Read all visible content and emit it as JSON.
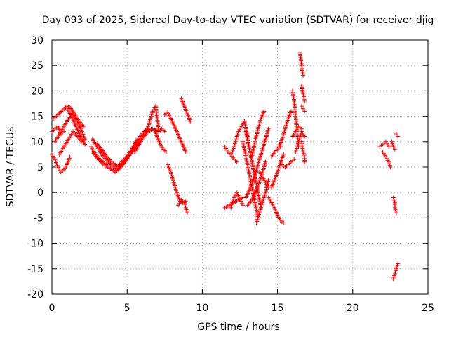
{
  "chart_data": {
    "type": "scatter",
    "title": "Day 093 of 2025, Sidereal Day-to-day VTEC variation (SDTVAR) for receiver djig",
    "xlabel": "GPS time / hours",
    "ylabel": "SDTVAR / TECUs",
    "xlim": [
      0,
      25
    ],
    "ylim": [
      -20,
      30
    ],
    "x_ticks": [
      "0",
      "5",
      "10",
      "15",
      "20",
      "25"
    ],
    "y_ticks": [
      "-20",
      "-15",
      "-10",
      "-5",
      "0",
      "5",
      "10",
      "15",
      "20",
      "25",
      "30"
    ],
    "grid": true,
    "legend": "none",
    "marker": "plus",
    "series_color": "#ff0000",
    "segments": [
      {
        "x": [
          0.0,
          0.2,
          0.4,
          0.6,
          0.8
        ],
        "y": [
          12.0,
          12.5,
          13.0,
          11.5,
          12.0
        ]
      },
      {
        "x": [
          0.0,
          0.2,
          0.4,
          0.6,
          0.8,
          1.0,
          1.2
        ],
        "y": [
          7.5,
          6.5,
          5.0,
          4.0,
          4.5,
          5.5,
          7.0
        ]
      },
      {
        "x": [
          0.1,
          0.4,
          0.7,
          1.0,
          1.2,
          1.5,
          1.8,
          2.1
        ],
        "y": [
          14.5,
          15.3,
          16.2,
          17.0,
          16.8,
          15.5,
          14.0,
          13.0
        ]
      },
      {
        "x": [
          0.2,
          0.5,
          0.8,
          1.1,
          1.4,
          1.7,
          2.0,
          2.2
        ],
        "y": [
          10.0,
          11.5,
          13.0,
          14.5,
          15.5,
          14.0,
          12.0,
          10.5
        ]
      },
      {
        "x": [
          0.5,
          0.8,
          1.1,
          1.4,
          1.7,
          2.0,
          2.2
        ],
        "y": [
          7.5,
          9.0,
          10.5,
          12.0,
          11.0,
          10.0,
          9.5
        ]
      },
      {
        "x": [
          1.0,
          1.3,
          1.6,
          1.9,
          2.2
        ],
        "y": [
          16.5,
          15.0,
          13.0,
          11.0,
          9.5
        ]
      },
      {
        "x": [
          2.7,
          3.0,
          3.3,
          3.6,
          3.9,
          4.2,
          4.5,
          4.8,
          5.1,
          5.4,
          5.6
        ],
        "y": [
          10.5,
          9.0,
          7.5,
          6.5,
          5.5,
          4.8,
          5.5,
          6.5,
          7.5,
          9.0,
          10.0
        ]
      },
      {
        "x": [
          2.6,
          2.9,
          3.2,
          3.5,
          3.8,
          4.1,
          4.4,
          4.7,
          5.0,
          5.3,
          5.6,
          5.9
        ],
        "y": [
          9.0,
          7.5,
          6.5,
          5.8,
          5.0,
          4.3,
          4.5,
          5.5,
          6.8,
          8.0,
          9.0,
          10.0
        ]
      },
      {
        "x": [
          2.7,
          3.0,
          3.3,
          3.6,
          3.9,
          4.2,
          4.5,
          4.8,
          5.1,
          5.4,
          5.7,
          6.0,
          6.3
        ],
        "y": [
          8.0,
          6.8,
          5.9,
          5.2,
          4.6,
          4.0,
          4.8,
          6.0,
          7.5,
          9.0,
          10.5,
          11.5,
          12.5
        ]
      },
      {
        "x": [
          3.0,
          3.3,
          3.6,
          3.9,
          4.2,
          4.5,
          4.8,
          5.1,
          5.4,
          5.7,
          6.0,
          6.3,
          6.6
        ],
        "y": [
          9.5,
          8.5,
          7.2,
          6.2,
          5.5,
          5.0,
          5.8,
          7.0,
          8.5,
          9.8,
          11.0,
          12.0,
          12.5
        ]
      },
      {
        "x": [
          5.5,
          5.8,
          6.1,
          6.4,
          6.7,
          7.0
        ],
        "y": [
          8.0,
          9.5,
          11.0,
          12.0,
          12.5,
          12.0
        ]
      },
      {
        "x": [
          6.3,
          6.5,
          6.7,
          6.9,
          7.1,
          7.3,
          7.5
        ],
        "y": [
          12.0,
          14.0,
          16.0,
          17.0,
          12.0,
          12.5,
          12.0
        ]
      },
      {
        "x": [
          6.8,
          7.0,
          7.2,
          7.4,
          7.6
        ],
        "y": [
          12.5,
          11.0,
          9.5,
          8.5,
          8.0
        ]
      },
      {
        "x": [
          7.5,
          7.7,
          8.0,
          8.3,
          8.6,
          8.9
        ],
        "y": [
          15.3,
          15.8,
          14.0,
          12.0,
          10.0,
          8.0
        ]
      },
      {
        "x": [
          7.7,
          7.9,
          8.1,
          8.3,
          8.5,
          8.7,
          8.9
        ],
        "y": [
          5.5,
          4.0,
          2.0,
          0.0,
          -1.5,
          -2.0,
          -1.8
        ]
      },
      {
        "x": [
          8.4,
          8.6,
          8.8,
          9.0
        ],
        "y": [
          -2.5,
          -1.5,
          -2.0,
          -4.0
        ]
      },
      {
        "x": [
          8.6,
          8.8,
          9.0,
          9.2
        ],
        "y": [
          18.5,
          17.0,
          15.5,
          14.0
        ]
      },
      {
        "x": [
          11.5,
          11.7,
          11.9,
          12.1,
          12.3
        ],
        "y": [
          9.0,
          8.0,
          7.5,
          6.5,
          6.0
        ]
      },
      {
        "x": [
          11.5,
          11.8,
          12.1,
          12.4,
          12.7
        ],
        "y": [
          -3.0,
          -2.5,
          -2.0,
          -1.5,
          -1.0
        ]
      },
      {
        "x": [
          11.9,
          12.1,
          12.3,
          12.5,
          12.7
        ],
        "y": [
          -3.0,
          -1.0,
          0.0,
          -1.5,
          -2.5
        ]
      },
      {
        "x": [
          12.0,
          12.2,
          12.4,
          12.6,
          12.8,
          13.0
        ],
        "y": [
          8.0,
          10.0,
          12.0,
          13.0,
          14.0,
          11.0
        ]
      },
      {
        "x": [
          12.7,
          12.9,
          13.1,
          13.3,
          13.5,
          13.7
        ],
        "y": [
          10.0,
          7.0,
          4.0,
          1.0,
          -2.0,
          -5.0
        ]
      },
      {
        "x": [
          12.9,
          13.1,
          13.3,
          13.5,
          13.7,
          13.9
        ],
        "y": [
          12.0,
          9.0,
          6.0,
          3.0,
          0.0,
          -3.0
        ]
      },
      {
        "x": [
          12.9,
          13.2,
          13.5,
          13.8,
          14.1,
          14.4
        ],
        "y": [
          -1.0,
          1.0,
          3.5,
          6.5,
          9.5,
          12.5
        ]
      },
      {
        "x": [
          13.0,
          13.3,
          13.6,
          13.9,
          14.2
        ],
        "y": [
          -2.5,
          -1.5,
          0.5,
          3.0,
          6.0
        ]
      },
      {
        "x": [
          13.6,
          13.8,
          14.0,
          14.2,
          14.4
        ],
        "y": [
          -6.0,
          -4.0,
          -2.0,
          0.0,
          2.5
        ]
      },
      {
        "x": [
          13.3,
          13.5,
          13.7,
          13.9,
          14.1
        ],
        "y": [
          7.0,
          10.0,
          12.5,
          14.5,
          16.0
        ]
      },
      {
        "x": [
          13.8,
          14.0,
          14.2,
          14.4
        ],
        "y": [
          4.0,
          3.0,
          2.0,
          1.0
        ]
      },
      {
        "x": [
          14.4,
          14.6,
          14.8,
          15.0,
          15.2,
          15.4
        ],
        "y": [
          -1.0,
          -2.0,
          -3.0,
          -4.5,
          -5.5,
          -6.0
        ]
      },
      {
        "x": [
          14.6,
          14.8,
          15.0,
          15.2
        ],
        "y": [
          7.0,
          8.0,
          8.5,
          9.0
        ]
      },
      {
        "x": [
          14.6,
          14.8,
          15.0,
          15.2,
          15.4
        ],
        "y": [
          1.0,
          2.5,
          4.0,
          6.0,
          7.5
        ]
      },
      {
        "x": [
          15.1,
          15.3,
          15.5,
          15.7,
          15.9
        ],
        "y": [
          9.0,
          10.5,
          12.5,
          14.5,
          16.0
        ]
      },
      {
        "x": [
          15.3,
          15.5,
          15.7,
          15.9,
          16.1
        ],
        "y": [
          5.5,
          5.0,
          5.5,
          6.0,
          6.5
        ]
      },
      {
        "x": [
          16.0,
          16.1,
          16.2,
          16.3,
          16.4
        ],
        "y": [
          20.0,
          18.0,
          15.0,
          12.0,
          9.0
        ]
      },
      {
        "x": [
          16.0,
          16.2,
          16.4,
          16.6
        ],
        "y": [
          11.0,
          12.0,
          13.0,
          12.5
        ]
      },
      {
        "x": [
          16.2,
          16.4,
          16.6,
          16.8
        ],
        "y": [
          8.0,
          10.0,
          12.0,
          11.0
        ]
      },
      {
        "x": [
          16.6,
          16.7,
          16.8
        ],
        "y": [
          17.0,
          16.5,
          16.0
        ]
      },
      {
        "x": [
          16.6,
          16.7,
          16.8,
          16.8
        ],
        "y": [
          10.0,
          8.0,
          7.0,
          6.0
        ]
      },
      {
        "x": [
          16.5,
          16.6,
          16.7
        ],
        "y": [
          27.5,
          25.0,
          23.0
        ]
      },
      {
        "x": [
          16.6,
          16.7,
          16.8
        ],
        "y": [
          21.0,
          19.5,
          18.0
        ]
      },
      {
        "x": [
          21.8,
          22.0,
          22.2,
          22.4
        ],
        "y": [
          9.0,
          9.5,
          10.0,
          9.0
        ]
      },
      {
        "x": [
          22.0,
          22.2,
          22.4,
          22.5
        ],
        "y": [
          8.0,
          7.0,
          6.0,
          5.0
        ]
      },
      {
        "x": [
          22.6,
          22.7,
          22.8
        ],
        "y": [
          10.0,
          9.0,
          8.5
        ]
      },
      {
        "x": [
          22.9,
          23.0
        ],
        "y": [
          11.5,
          11.0
        ]
      },
      {
        "x": [
          22.7,
          22.8,
          22.8,
          22.9
        ],
        "y": [
          -1.0,
          -2.0,
          -3.0,
          -4.0
        ]
      },
      {
        "x": [
          22.7,
          22.8,
          22.9,
          23.0
        ],
        "y": [
          -17.0,
          -16.0,
          -15.0,
          -14.0
        ]
      }
    ]
  }
}
